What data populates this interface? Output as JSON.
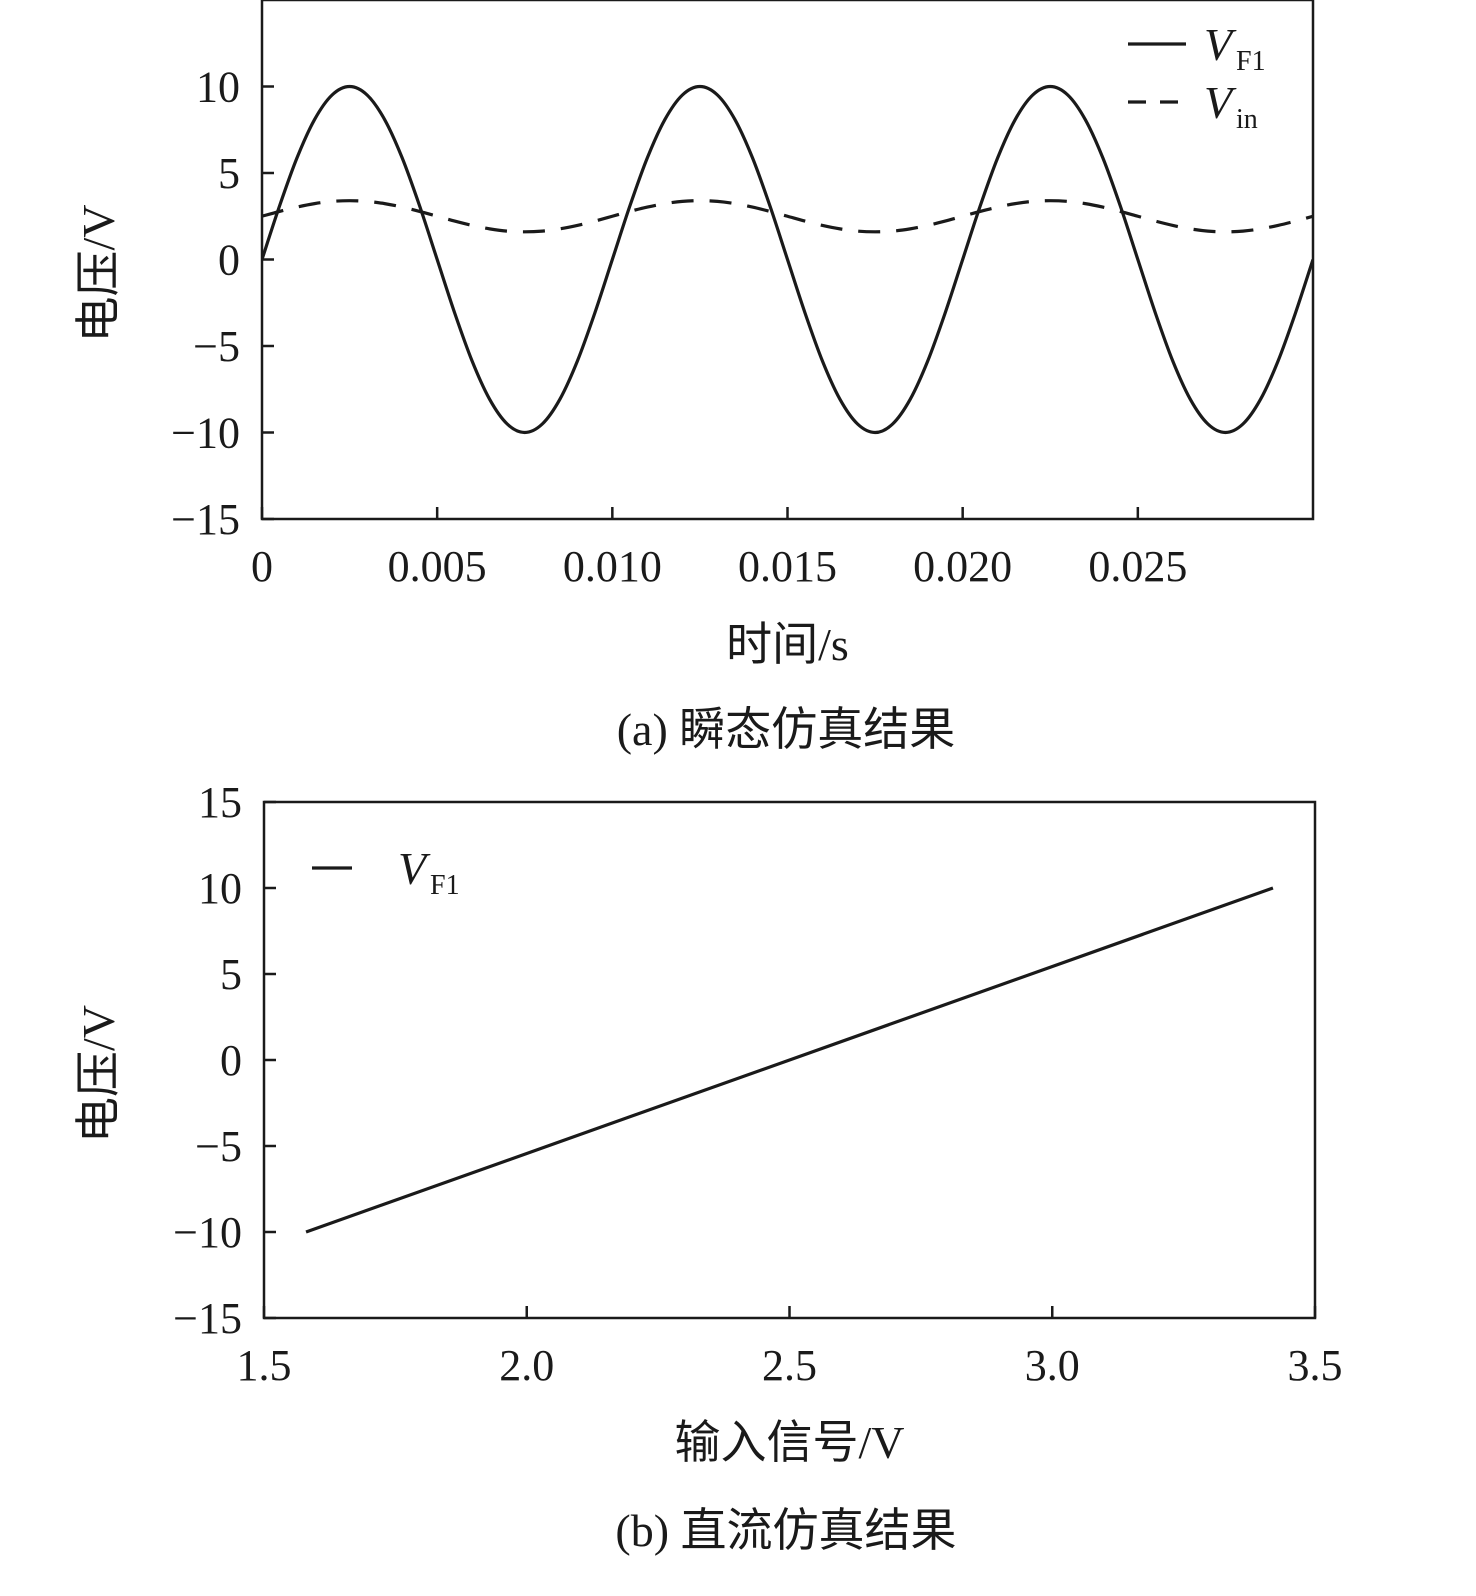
{
  "chart_data": [
    {
      "type": "line",
      "caption": "(a) 瞬态仿真结果",
      "xlabel": "时间/s",
      "ylabel": "电压/V",
      "xlim": [
        0,
        0.03
      ],
      "ylim": [
        -15,
        15
      ],
      "x_ticks": [
        0,
        0.005,
        0.01,
        0.015,
        0.02,
        0.025
      ],
      "x_tick_labels": [
        "0",
        "0.005",
        "0.010",
        "0.015",
        "0.020",
        "0.025"
      ],
      "y_ticks": [
        -15,
        -10,
        -5,
        0,
        5,
        10
      ],
      "y_tick_labels": [
        "−15",
        "−10",
        "−5",
        "0",
        "5",
        "10"
      ],
      "legend_position": "top-right",
      "grid": false,
      "series": [
        {
          "name": "V",
          "name_subscript": "F1",
          "style": "solid",
          "x": [
            0,
            0.0005,
            0.001,
            0.0015,
            0.002,
            0.0025,
            0.003,
            0.0035,
            0.004,
            0.0045,
            0.005,
            0.0055,
            0.006,
            0.0065,
            0.007,
            0.0075,
            0.008,
            0.0085,
            0.009,
            0.0095,
            0.01,
            0.0105,
            0.011,
            0.0115,
            0.012,
            0.0125,
            0.013,
            0.0135,
            0.014,
            0.0145,
            0.015,
            0.0155,
            0.016,
            0.0165,
            0.017,
            0.0175,
            0.018,
            0.0185,
            0.019,
            0.0195,
            0.02,
            0.0205,
            0.021,
            0.0215,
            0.022,
            0.0225,
            0.023,
            0.0235,
            0.024,
            0.0245,
            0.025,
            0.0255,
            0.026,
            0.0265,
            0.027,
            0.0275,
            0.028,
            0.0285,
            0.029,
            0.0295,
            0.03
          ],
          "y": [
            0,
            3.09,
            5.88,
            8.09,
            9.51,
            10,
            9.51,
            8.09,
            5.88,
            3.09,
            0,
            -3.09,
            -5.88,
            -8.09,
            -9.51,
            -10,
            -9.51,
            -8.09,
            -5.88,
            -3.09,
            0,
            3.09,
            5.88,
            8.09,
            9.51,
            10,
            9.51,
            8.09,
            5.88,
            3.09,
            0,
            -3.09,
            -5.88,
            -8.09,
            -9.51,
            -10,
            -9.51,
            -8.09,
            -5.88,
            -3.09,
            0,
            3.09,
            5.88,
            8.09,
            9.51,
            10,
            9.51,
            8.09,
            5.88,
            3.09,
            0,
            -3.09,
            -5.88,
            -8.09,
            -9.51,
            -10,
            -9.51,
            -8.09,
            -5.88,
            -3.09,
            0
          ]
        },
        {
          "name": "V",
          "name_subscript": "in",
          "style": "dashed",
          "x": [
            0,
            0.0005,
            0.001,
            0.0015,
            0.002,
            0.0025,
            0.003,
            0.0035,
            0.004,
            0.0045,
            0.005,
            0.0055,
            0.006,
            0.0065,
            0.007,
            0.0075,
            0.008,
            0.0085,
            0.009,
            0.0095,
            0.01,
            0.0105,
            0.011,
            0.0115,
            0.012,
            0.0125,
            0.013,
            0.0135,
            0.014,
            0.0145,
            0.015,
            0.0155,
            0.016,
            0.0165,
            0.017,
            0.0175,
            0.018,
            0.0185,
            0.019,
            0.0195,
            0.02,
            0.0205,
            0.021,
            0.0215,
            0.022,
            0.0225,
            0.023,
            0.0235,
            0.024,
            0.0245,
            0.025,
            0.0255,
            0.026,
            0.0265,
            0.027,
            0.0275,
            0.028,
            0.0285,
            0.029,
            0.0295,
            0.03
          ],
          "y": [
            2.5,
            2.78,
            3.03,
            3.23,
            3.36,
            3.4,
            3.36,
            3.23,
            3.03,
            2.78,
            2.5,
            2.22,
            1.97,
            1.77,
            1.64,
            1.6,
            1.64,
            1.77,
            1.97,
            2.22,
            2.5,
            2.78,
            3.03,
            3.23,
            3.36,
            3.4,
            3.36,
            3.23,
            3.03,
            2.78,
            2.5,
            2.22,
            1.97,
            1.77,
            1.64,
            1.6,
            1.64,
            1.77,
            1.97,
            2.22,
            2.5,
            2.78,
            3.03,
            3.23,
            3.36,
            3.4,
            3.36,
            3.23,
            3.03,
            2.78,
            2.5,
            2.22,
            1.97,
            1.77,
            1.64,
            1.6,
            1.64,
            1.77,
            1.97,
            2.22,
            2.5
          ]
        }
      ]
    },
    {
      "type": "line",
      "caption": "(b) 直流仿真结果",
      "xlabel": "输入信号/V",
      "ylabel": "电压/V",
      "xlim": [
        1.5,
        3.5
      ],
      "ylim": [
        -15,
        15
      ],
      "x_ticks": [
        1.5,
        2.0,
        2.5,
        3.0,
        3.5
      ],
      "x_tick_labels": [
        "1.5",
        "2.0",
        "2.5",
        "3.0",
        "3.5"
      ],
      "y_ticks": [
        -15,
        -10,
        -5,
        0,
        5,
        10,
        15
      ],
      "y_tick_labels": [
        "−15",
        "−10",
        "−5",
        "0",
        "5",
        "10",
        "15"
      ],
      "legend_position": "top-left",
      "grid": false,
      "series": [
        {
          "name": "V",
          "name_subscript": "F1",
          "style": "solid",
          "x": [
            1.58,
            3.42
          ],
          "y": [
            -10,
            10
          ]
        }
      ]
    }
  ],
  "colors": {
    "ink": "#1a1a1a",
    "background": "#ffffff"
  }
}
